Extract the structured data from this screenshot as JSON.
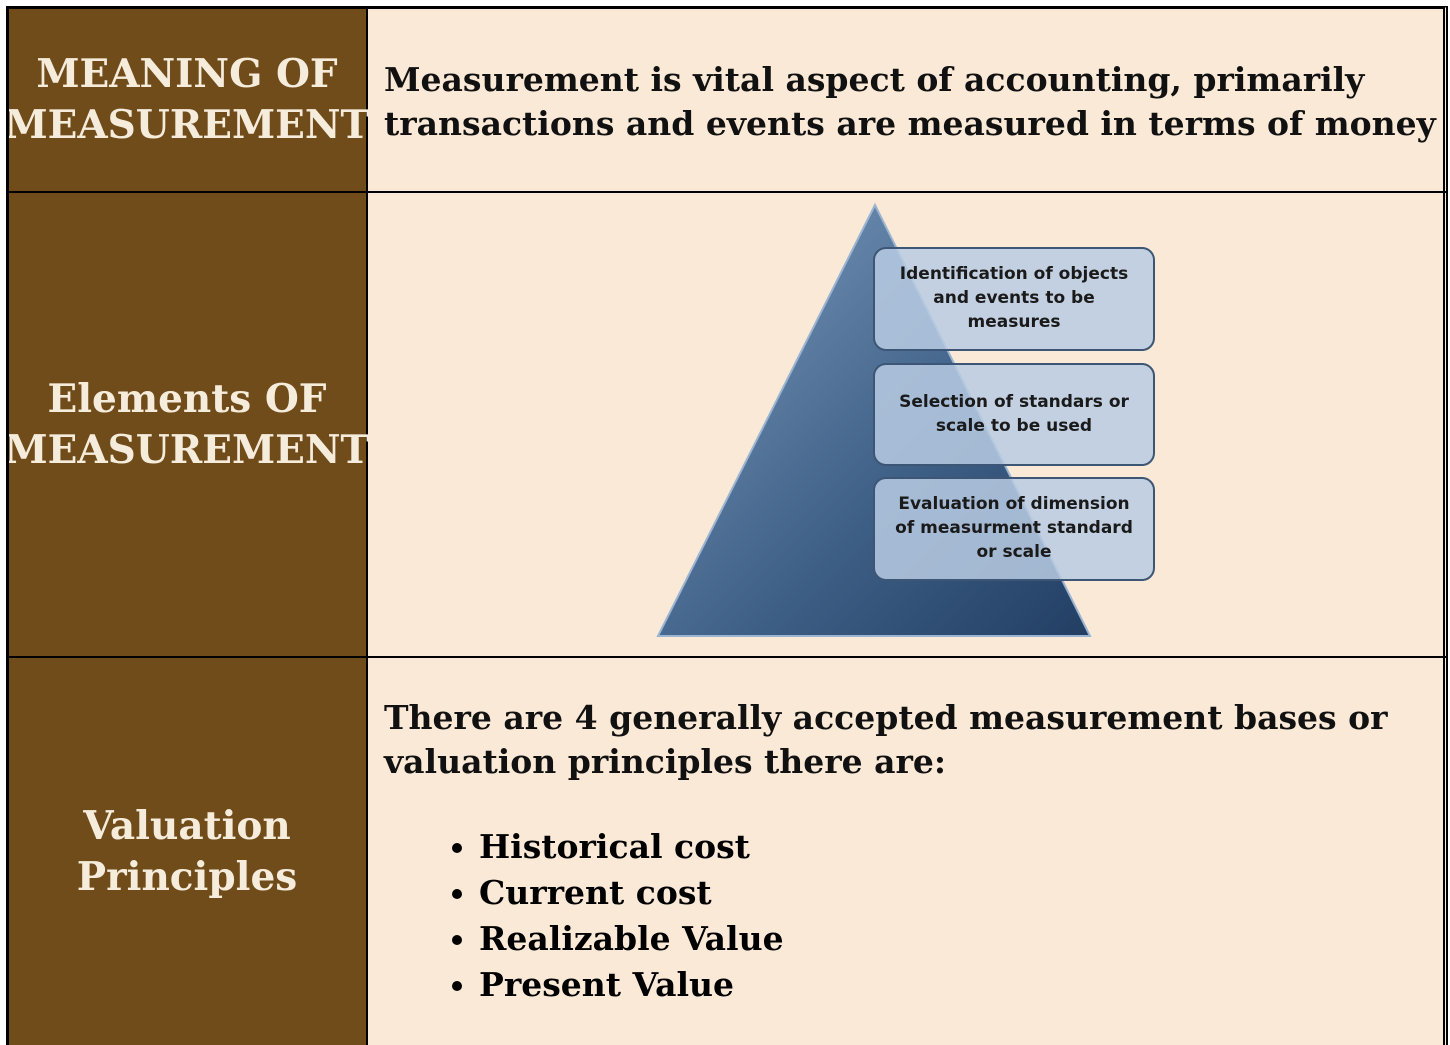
{
  "table": {
    "rows": [
      {
        "label": "MEANING OF MEASUREMENT",
        "text": "Measurement is vital aspect of accounting, primarily transactions and events are measured in terms of money"
      },
      {
        "label": "Elements OF MEASUREMENT",
        "diagram": {
          "items": [
            "Identification of objects and events to be measures",
            "Selection of standars or scale to be used",
            "Evaluation of dimension of measurment standard or scale"
          ]
        }
      },
      {
        "label": "Valuation Principles",
        "text": "There are 4 generally accepted measurement bases or valuation principles there are:",
        "bullets": [
          "Historical cost",
          "Current cost",
          "Realizable Value",
          "Present Value"
        ]
      }
    ]
  }
}
